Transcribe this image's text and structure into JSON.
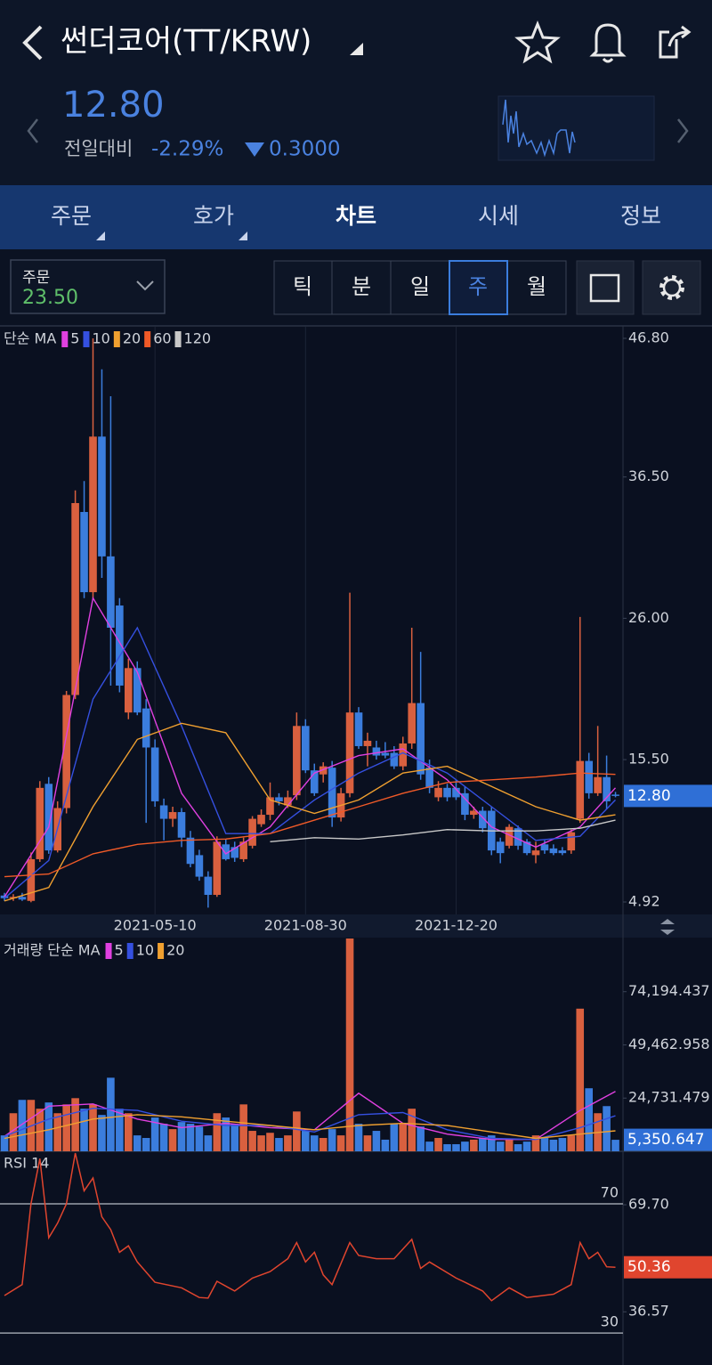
{
  "header": {
    "title": "썬더코어(TT/KRW)",
    "price": "12.80",
    "change_label": "전일대비",
    "change_pct": "-2.29%",
    "change_abs": "0.3000"
  },
  "tabs": [
    "주문",
    "호가",
    "차트",
    "시세",
    "정보"
  ],
  "order": {
    "label": "주문",
    "value": "23.50"
  },
  "periods": [
    "틱",
    "분",
    "일",
    "주",
    "월"
  ],
  "chart_data": [
    {
      "type": "candlestick",
      "legend_title": "단순 MA",
      "categories": [
        null,
        null,
        null,
        null,
        null,
        null,
        null,
        null,
        null,
        null,
        null,
        null,
        null,
        null,
        null,
        null,
        null,
        "2021-05-10",
        null,
        null,
        null,
        null,
        null,
        null,
        null,
        null,
        null,
        null,
        null,
        null,
        null,
        null,
        null,
        null,
        "2021-08-30",
        null,
        null,
        null,
        null,
        null,
        null,
        null,
        null,
        null,
        null,
        null,
        null,
        null,
        null,
        null,
        null,
        "2021-12-20",
        null,
        null,
        null,
        null,
        null,
        null,
        null,
        null,
        null,
        null,
        null,
        null,
        null,
        null,
        null,
        null,
        null,
        null
      ],
      "open": [
        5.4,
        5.2,
        5.3,
        5.0,
        8.1,
        13.7,
        8.75,
        11.9,
        20.3,
        33.9,
        27.94,
        39.5,
        30.6,
        26.95,
        19.0,
        22.3,
        19.3,
        16.4,
        12.1,
        11.1,
        11.6,
        9.7,
        8.4,
        6.8,
        5.45,
        9.2,
        9.0,
        8.1,
        9.1,
        10.7,
        11.4,
        12.7,
        12.1,
        12.85,
        18.0,
        14.7,
        14.4,
        14.9,
        11.2,
        13.0,
        19.0,
        16.5,
        16.4,
        16.0,
        16.0,
        15.0,
        16.7,
        19.7,
        14.9,
        12.7,
        13.4,
        13.4,
        13.0,
        11.4,
        11.7,
        11.7,
        9.4,
        9.1,
        10.4,
        9.4,
        8.4,
        9.2,
        8.9,
        8.75,
        8.75,
        11.1,
        15.4,
        13.0,
        14.2,
        12.9
      ],
      "high": [
        5.6,
        5.5,
        5.6,
        8.6,
        13.9,
        14.2,
        12.4,
        20.6,
        35.5,
        36.2,
        46.8,
        44.5,
        42.5,
        27.5,
        23.0,
        22.8,
        20.0,
        17.0,
        12.6,
        12.0,
        11.9,
        10.2,
        8.8,
        7.2,
        9.8,
        9.6,
        9.4,
        9.7,
        11.3,
        11.8,
        13.8,
        13.0,
        13.2,
        19.0,
        18.5,
        15.2,
        15.3,
        15.4,
        13.4,
        27.9,
        19.4,
        17.5,
        16.9,
        16.8,
        16.5,
        17.2,
        25.3,
        23.5,
        15.5,
        13.9,
        13.7,
        14.0,
        13.5,
        12.0,
        12.0,
        12.0,
        9.7,
        10.7,
        10.6,
        9.6,
        9.4,
        9.5,
        9.2,
        9.0,
        10.3,
        26.1,
        16.0,
        18.0,
        15.8,
        13.1
      ],
      "low": [
        5.0,
        5.0,
        5.0,
        4.9,
        7.9,
        8.5,
        8.6,
        11.5,
        20.0,
        27.5,
        27.5,
        29.0,
        21.0,
        20.5,
        18.5,
        18.8,
        10.8,
        12.0,
        9.5,
        10.5,
        9.0,
        7.5,
        6.5,
        4.5,
        5.3,
        8.0,
        7.9,
        7.9,
        8.9,
        10.5,
        11.0,
        12.1,
        11.9,
        12.5,
        14.5,
        12.8,
        13.8,
        10.5,
        10.9,
        12.7,
        16.3,
        15.0,
        15.5,
        15.6,
        14.8,
        14.7,
        16.3,
        14.0,
        13.0,
        12.4,
        12.4,
        12.5,
        11.0,
        11.1,
        10.1,
        8.4,
        7.8,
        8.9,
        8.8,
        8.4,
        7.8,
        8.5,
        8.4,
        8.4,
        8.5,
        10.8,
        12.6,
        12.8,
        11.8,
        12.7
      ],
      "close": [
        5.2,
        5.3,
        5.1,
        8.1,
        13.4,
        8.75,
        11.9,
        20.3,
        34.56,
        27.94,
        39.5,
        30.6,
        25.3,
        21.0,
        22.3,
        19.0,
        16.4,
        12.4,
        11.1,
        11.6,
        9.7,
        7.75,
        6.8,
        5.45,
        9.4,
        8.1,
        8.2,
        9.4,
        11.1,
        11.4,
        12.7,
        12.4,
        12.7,
        18.0,
        14.7,
        13.0,
        15.0,
        11.2,
        13.0,
        19.0,
        16.5,
        16.9,
        15.8,
        15.8,
        15.0,
        16.7,
        19.7,
        14.4,
        13.4,
        13.4,
        12.7,
        12.7,
        11.4,
        11.7,
        10.4,
        8.75,
        8.55,
        10.5,
        9.1,
        8.55,
        8.75,
        8.75,
        8.55,
        8.55,
        10.1,
        15.4,
        13.0,
        14.2,
        12.4,
        12.8
      ],
      "up_color": "#d9603f",
      "down_color": "#3b7ddd",
      "ylim": [
        4.92,
        46.8
      ],
      "yticks": [
        {
          "value": 46.8,
          "label": "46.80"
        },
        {
          "value": 36.5,
          "label": "36.50"
        },
        {
          "value": 26,
          "label": "26.00"
        },
        {
          "value": 15.5,
          "label": "15.50"
        },
        4.92
      ],
      "last": {
        "value": 12.8,
        "label": "12.80"
      },
      "last_color": "#2f6fd6",
      "lines": [
        {
          "name": "5",
          "color": "#e040e0",
          "x": [
            0,
            5,
            10,
            15,
            20,
            25,
            30,
            35,
            40,
            45,
            50,
            55,
            60,
            65,
            69
          ],
          "values": [
            5.3,
            10.5,
            27.5,
            22,
            13,
            8.5,
            10.5,
            14.5,
            15.8,
            16.3,
            14,
            10.5,
            9,
            10.5,
            13.4
          ]
        },
        {
          "name": "10",
          "color": "#3550e0",
          "x": [
            0,
            5,
            10,
            15,
            20,
            25,
            30,
            35,
            40,
            45,
            50,
            55,
            60,
            65,
            69
          ],
          "values": [
            5.2,
            8,
            20,
            25.3,
            18,
            10,
            10,
            12.5,
            14.5,
            16,
            14.5,
            12,
            9.5,
            9.8,
            12.5
          ]
        },
        {
          "name": "20",
          "color": "#f0a030",
          "x": [
            0,
            5,
            10,
            15,
            20,
            25,
            30,
            35,
            40,
            45,
            50,
            55,
            60,
            65,
            69
          ],
          "values": [
            5,
            6,
            12,
            17,
            18.2,
            17.5,
            12.5,
            11.5,
            12.5,
            14.5,
            15,
            13.5,
            12,
            11,
            11.4
          ]
        },
        {
          "name": "60",
          "color": "#f05a28",
          "x": [
            0,
            5,
            10,
            15,
            20,
            25,
            30,
            35,
            40,
            45,
            50,
            55,
            60,
            65,
            69
          ],
          "values": [
            6.8,
            7,
            8.5,
            9.2,
            9.5,
            9.6,
            10,
            11,
            12,
            13,
            13.8,
            14,
            14.2,
            14.5,
            14.4
          ]
        },
        {
          "name": "120",
          "color": "#c8c8c8",
          "x": [
            30,
            35,
            40,
            45,
            50,
            55,
            60,
            65,
            69
          ],
          "values": [
            9.4,
            9.7,
            9.6,
            9.9,
            10.3,
            10.2,
            10.2,
            10.4,
            11.0
          ]
        }
      ]
    },
    {
      "type": "bar",
      "legend_title": "거래량 단순 MA",
      "values": [
        7400,
        17700,
        23900,
        23900,
        19800,
        22700,
        17700,
        21800,
        24700,
        19800,
        21800,
        16900,
        34200,
        19800,
        17700,
        7400,
        6200,
        15700,
        12800,
        10300,
        13600,
        12800,
        11500,
        7400,
        17700,
        15700,
        12800,
        21800,
        9500,
        7400,
        8600,
        6200,
        7400,
        18500,
        9500,
        7400,
        6200,
        10300,
        7400,
        98900,
        12800,
        7400,
        9500,
        5400,
        12800,
        12800,
        19800,
        11500,
        4500,
        6200,
        3300,
        3300,
        4500,
        5400,
        6200,
        7400,
        4500,
        5400,
        3300,
        4500,
        7400,
        6200,
        5400,
        6200,
        7400,
        66300,
        29300,
        17700,
        21000,
        5350.647
      ],
      "ylim": [
        0,
        98500
      ],
      "yticks": [
        {
          "value": 74194.437,
          "label": "74,194.437"
        },
        {
          "value": 49462.958,
          "label": "49,462.958"
        },
        {
          "value": 24731.479,
          "label": "24,731.479"
        }
      ],
      "last": {
        "value": 5350.647,
        "label": "5,350.647"
      },
      "last_color": "#2f6fd6",
      "lines": [
        {
          "name": "5",
          "color": "#e040e0",
          "x": [
            0,
            5,
            10,
            15,
            20,
            25,
            30,
            35,
            40,
            45,
            50,
            55,
            60,
            65,
            69
          ],
          "values": [
            7000,
            21000,
            22000,
            15000,
            11000,
            13000,
            11000,
            10000,
            27000,
            13000,
            8000,
            5500,
            5500,
            19000,
            27800
          ]
        },
        {
          "name": "10",
          "color": "#3550e0",
          "x": [
            0,
            5,
            10,
            15,
            20,
            25,
            30,
            35,
            40,
            45,
            50,
            55,
            60,
            65,
            69
          ],
          "values": [
            7000,
            15000,
            20000,
            19000,
            14000,
            12000,
            12000,
            9000,
            17000,
            18000,
            10000,
            6000,
            5500,
            11000,
            16500
          ]
        },
        {
          "name": "20",
          "color": "#f0a030",
          "x": [
            0,
            5,
            10,
            15,
            20,
            25,
            30,
            35,
            40,
            45,
            50,
            55,
            60,
            65,
            69
          ],
          "values": [
            6000,
            10000,
            15000,
            17000,
            16000,
            14000,
            12000,
            10000,
            12000,
            13000,
            12000,
            9000,
            6000,
            8000,
            9500
          ]
        }
      ]
    },
    {
      "type": "line",
      "title": "RSI 14",
      "color": "#e0452e",
      "x": [
        0,
        2,
        3,
        4,
        5,
        6,
        7,
        8,
        9,
        10,
        11,
        12,
        13,
        14,
        15,
        17,
        20,
        22,
        23,
        24,
        26,
        28,
        30,
        32,
        33,
        34,
        35,
        36,
        37,
        39,
        40,
        42,
        44,
        46,
        47,
        48,
        51,
        52,
        54,
        55,
        57,
        59,
        62,
        64,
        65,
        66,
        67,
        68,
        69
      ],
      "values": [
        41.6,
        45,
        70,
        84,
        59.5,
        64,
        70,
        85.7,
        74,
        78,
        66,
        62,
        55,
        57,
        52,
        45.7,
        44,
        41,
        40.8,
        46,
        43,
        47,
        49,
        53,
        58,
        52,
        55,
        48,
        45,
        58,
        54,
        53,
        53,
        59,
        50,
        52,
        47,
        45.7,
        43,
        40,
        44,
        41,
        42,
        45,
        58,
        53,
        55,
        50.5,
        50.36
      ],
      "ylim": [
        20.1,
        85.7
      ],
      "yticks": [
        70,
        30
      ],
      "right_ticks": [
        {
          "value": 69.7,
          "label": "69.70"
        },
        36.57
      ],
      "last": {
        "value": 50.36,
        "label": "50.36"
      },
      "last_color": "#e0452e"
    }
  ]
}
